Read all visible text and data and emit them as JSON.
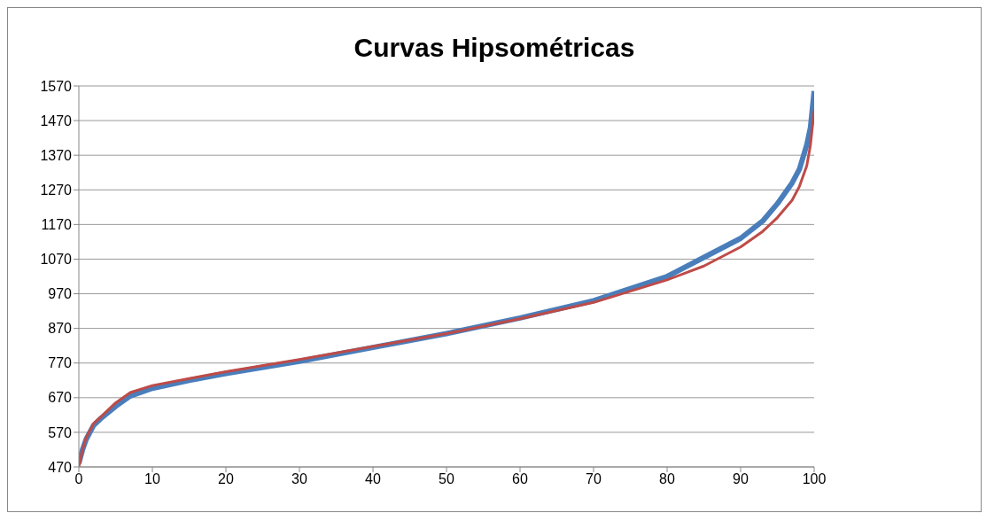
{
  "chart_data": {
    "type": "line",
    "title": "Curvas Hipsométricas",
    "xlim": [
      0,
      100
    ],
    "xticks": [
      0,
      10,
      20,
      30,
      40,
      50,
      60,
      70,
      80,
      90,
      100
    ],
    "ylim": [
      470,
      1570
    ],
    "yticks": [
      470,
      570,
      670,
      770,
      870,
      970,
      1070,
      1170,
      1270,
      1370,
      1470,
      1570
    ],
    "grid": "y",
    "marker": "none",
    "line_style": "solid",
    "series": [
      {
        "color": "#4a7ebb",
        "x": [
          0,
          0.5,
          1,
          2,
          3,
          5,
          7,
          10,
          15,
          20,
          30,
          40,
          50,
          60,
          70,
          80,
          85,
          90,
          93,
          95,
          97,
          98,
          99,
          99.5,
          100
        ],
        "values": [
          480,
          520,
          550,
          590,
          610,
          645,
          675,
          697,
          720,
          740,
          775,
          815,
          855,
          900,
          950,
          1020,
          1075,
          1130,
          1180,
          1230,
          1290,
          1330,
          1400,
          1450,
          1555
        ]
      },
      {
        "color": "#be4b48",
        "x": [
          0,
          0.5,
          1,
          2,
          3,
          5,
          7,
          10,
          15,
          20,
          30,
          40,
          50,
          60,
          70,
          80,
          85,
          90,
          93,
          95,
          97,
          98,
          99,
          99.5,
          100
        ],
        "values": [
          470,
          520,
          555,
          595,
          615,
          655,
          685,
          705,
          725,
          745,
          780,
          818,
          855,
          898,
          945,
          1010,
          1050,
          1105,
          1150,
          1190,
          1240,
          1280,
          1340,
          1400,
          1500
        ]
      }
    ]
  }
}
